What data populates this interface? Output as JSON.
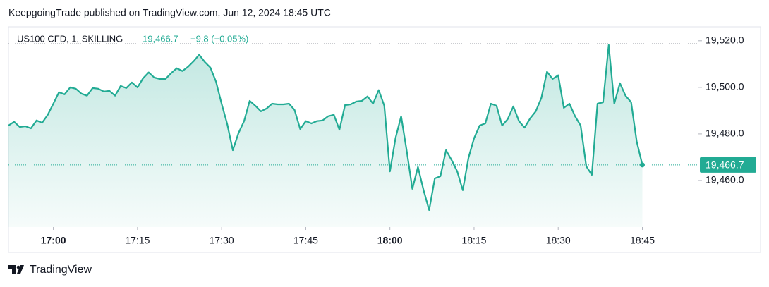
{
  "header": "KeepgoingTrade published on TradingView.com, Jun 12, 2024 18:45 UTC",
  "footer": "TradingView",
  "chart_data": {
    "type": "area",
    "symbol": "US100 CFD, 1, SKILLING",
    "last_price": "19,466.7",
    "change": "−9.8 (−0.05%)",
    "x": [
      "16:52",
      "16:53",
      "16:54",
      "16:55",
      "16:56",
      "16:57",
      "16:58",
      "16:59",
      "17:00",
      "17:01",
      "17:02",
      "17:03",
      "17:04",
      "17:05",
      "17:06",
      "17:07",
      "17:08",
      "17:09",
      "17:10",
      "17:11",
      "17:12",
      "17:13",
      "17:14",
      "17:15",
      "17:16",
      "17:17",
      "17:18",
      "17:19",
      "17:20",
      "17:21",
      "17:22",
      "17:23",
      "17:24",
      "17:25",
      "17:26",
      "17:27",
      "17:28",
      "17:29",
      "17:30",
      "17:31",
      "17:32",
      "17:33",
      "17:34",
      "17:35",
      "17:36",
      "17:37",
      "17:38",
      "17:39",
      "17:40",
      "17:41",
      "17:42",
      "17:43",
      "17:44",
      "17:45",
      "17:46",
      "17:47",
      "17:48",
      "17:49",
      "17:50",
      "17:51",
      "17:52",
      "17:53",
      "17:54",
      "17:55",
      "17:56",
      "17:57",
      "17:58",
      "17:59",
      "18:00",
      "18:01",
      "18:02",
      "18:03",
      "18:04",
      "18:05",
      "18:06",
      "18:07",
      "18:08",
      "18:09",
      "18:10",
      "18:11",
      "18:12",
      "18:13",
      "18:14",
      "18:15",
      "18:16",
      "18:17",
      "18:18",
      "18:19",
      "18:20",
      "18:21",
      "18:22",
      "18:23",
      "18:24",
      "18:25",
      "18:26",
      "18:27",
      "18:28",
      "18:29",
      "18:30",
      "18:31",
      "18:32",
      "18:33",
      "18:34",
      "18:35",
      "18:36",
      "18:37",
      "18:38",
      "18:39",
      "18:40",
      "18:41",
      "18:42",
      "18:43",
      "18:44",
      "18:45"
    ],
    "series": [
      {
        "name": "US100 CFD",
        "color": "#22ab94",
        "values": [
          19483.6,
          19485.2,
          19483.0,
          19483.3,
          19482.4,
          19485.8,
          19484.8,
          19488.2,
          19493.0,
          19497.9,
          19497.0,
          19500.0,
          19499.4,
          19497.3,
          19496.4,
          19499.7,
          19499.4,
          19498.2,
          19498.5,
          19496.4,
          19500.6,
          19499.7,
          19502.1,
          19500.0,
          19503.9,
          19506.4,
          19504.2,
          19503.6,
          19503.6,
          19506.1,
          19508.2,
          19507.0,
          19508.8,
          19511.2,
          19514.0,
          19510.9,
          19508.5,
          19502.4,
          19493.0,
          19484.2,
          19473.0,
          19480.3,
          19485.5,
          19494.2,
          19492.1,
          19489.7,
          19490.9,
          19493.0,
          19492.7,
          19492.7,
          19493.0,
          19490.3,
          19482.1,
          19485.5,
          19484.5,
          19485.5,
          19485.8,
          19487.6,
          19488.2,
          19481.8,
          19492.4,
          19492.7,
          19493.9,
          19494.2,
          19496.1,
          19493.0,
          19498.8,
          19492.1,
          19463.9,
          19478.2,
          19487.6,
          19472.7,
          19456.4,
          19465.8,
          19455.8,
          19447.3,
          19460.9,
          19461.8,
          19473.0,
          19468.8,
          19463.9,
          19455.8,
          19469.7,
          19478.2,
          19483.6,
          19484.5,
          19493.0,
          19492.1,
          19483.6,
          19486.4,
          19491.8,
          19485.5,
          19482.7,
          19486.7,
          19489.7,
          19495.5,
          19506.7,
          19503.6,
          19505.2,
          19491.2,
          19493.0,
          19487.6,
          19483.6,
          19466.1,
          19462.4,
          19493.0,
          19493.6,
          19518.2,
          19493.0,
          19501.8,
          19496.4,
          19493.6,
          19476.7,
          19466.7
        ]
      }
    ],
    "xlim": [
      "16:52",
      "18:55"
    ],
    "xticks": [
      "17:00",
      "17:15",
      "17:30",
      "17:45",
      "18:00",
      "18:15",
      "18:30",
      "18:45"
    ],
    "ylim": [
      19440,
      19526
    ],
    "yticks": [
      {
        "value": 19460,
        "label": "19,460.0"
      },
      {
        "value": 19480,
        "label": "19,480.0"
      },
      {
        "value": 19500,
        "label": "19,500.0"
      },
      {
        "value": 19520,
        "label": "19,520.0"
      }
    ]
  }
}
